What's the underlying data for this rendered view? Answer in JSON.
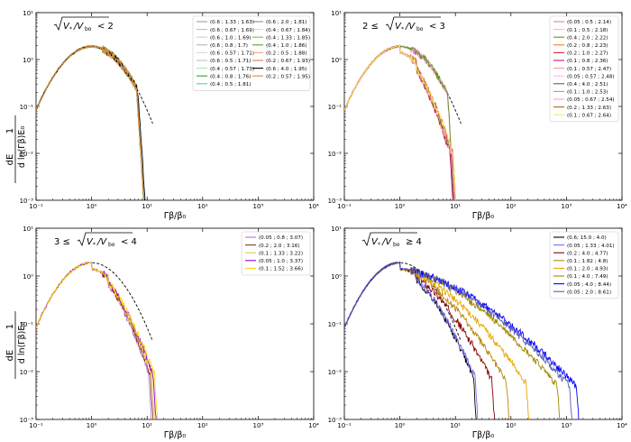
{
  "figure": {
    "ylabel_num": "dE",
    "ylabel_den": "d ln(Γβ)E₀",
    "ylabel_frac": "1",
    "xlabel": "Γβ/β₀"
  },
  "chart_data": [
    {
      "type": "line",
      "panel": "top-left",
      "title_prefix": "",
      "title_suffix": "<  2",
      "x_scale": "log",
      "y_scale": "log",
      "xlim": [
        0.1,
        10000
      ],
      "ylim": [
        0.001,
        10
      ],
      "x_ticks": [
        "10⁻¹",
        "10⁰",
        "10¹",
        "10²",
        "10³",
        "10⁴"
      ],
      "y_ticks": [
        "10⁻³",
        "10⁻²",
        "10⁻¹",
        "10⁰",
        "10¹"
      ],
      "xlabel": "Γβ/β₀",
      "legend_placement": "top-right",
      "legend_columns": 2,
      "series": [
        {
          "name": "(0.6 ; 1.33 ; 1.63)",
          "color": "#9e9e9e",
          "xmax": 8.5
        },
        {
          "name": "(0.6 ; 0.67 ; 1.69)",
          "color": "#bdbdbd",
          "xmax": 8.5
        },
        {
          "name": "(0.6 ; 1.0 ; 1.69)",
          "color": "#cfcfcf",
          "xmax": 8.5
        },
        {
          "name": "(0.6 ; 0.8 ; 1.7)",
          "color": "#b5b5b5",
          "xmax": 8.5
        },
        {
          "name": "(0.6 ; 0.57 ; 1.71)",
          "color": "#d9d9d9",
          "xmax": 8.5
        },
        {
          "name": "(0.6 ; 0.5 ; 1.71)",
          "color": "#c4c4c4",
          "xmax": 8.5
        },
        {
          "name": "(0.4 ; 0.57 ; 1.73)",
          "color": "#a8e6a1",
          "xmax": 8.5
        },
        {
          "name": "(0.4 ; 0.8 ; 1.76)",
          "color": "#2ca02c",
          "xmax": 8.5
        },
        {
          "name": "(0.4 ; 0.5 ; 1.81)",
          "color": "#3cd9a8",
          "xmax": 8.5
        },
        {
          "name": "(0.6 ; 2.0 ; 1.81)",
          "color": "#8c8c8c",
          "xmax": 8.5
        },
        {
          "name": "(0.4 ; 0.67 ; 1.84)",
          "color": "#c9e8a0",
          "xmax": 8.5
        },
        {
          "name": "(0.4 ; 1.33 ; 1.85)",
          "color": "#7fbf3f",
          "xmax": 8.5
        },
        {
          "name": "(0.4 ; 1.0 ; 1.86)",
          "color": "#5aa02c",
          "xmax": 8.5
        },
        {
          "name": "(0.2 ; 0.5 ; 1.88)",
          "color": "#f4a582",
          "xmax": 8.5
        },
        {
          "name": "(0.2 ; 0.67 ; 1.93)",
          "color": "#e07b54",
          "xmax": 8.5
        },
        {
          "name": "(0.6 ; 4.0 ; 1.95)",
          "color": "#000000",
          "xmax": 9.0
        },
        {
          "name": "(0.2 ; 0.57 ; 1.95)",
          "color": "#d98c3c",
          "xmax": 8.5
        }
      ]
    },
    {
      "type": "line",
      "panel": "top-right",
      "title_prefix": "2 ≤",
      "title_suffix": "<  3",
      "x_scale": "log",
      "y_scale": "log",
      "xlim": [
        0.1,
        10000
      ],
      "ylim": [
        0.001,
        10
      ],
      "x_ticks": [
        "10⁻¹",
        "10⁰",
        "10¹",
        "10²",
        "10³",
        "10⁴"
      ],
      "y_ticks": [
        "10⁻³",
        "10⁻²",
        "10⁻¹",
        "10⁰",
        "10¹"
      ],
      "xlabel": "Γβ/β₀",
      "legend_placement": "top-right",
      "legend_columns": 1,
      "series": [
        {
          "name": "(0.05 ; 0.5 ; 2.14)",
          "color": "#e377c2",
          "xmax": 9.5
        },
        {
          "name": "(0.1 ; 0.5 ; 2.18)",
          "color": "#f7b6d2",
          "xmax": 9.5
        },
        {
          "name": "(0.4 ; 2.0 ; 2.22)",
          "color": "#6b8e23",
          "xmax": 9.5
        },
        {
          "name": "(0.2 ; 0.8 ; 2.23)",
          "color": "#ff7f0e",
          "xmax": 10.5
        },
        {
          "name": "(0.2 ; 1.0 ; 2.27)",
          "color": "#d62728",
          "xmax": 10.5
        },
        {
          "name": "(0.1 ; 0.8 ; 2.36)",
          "color": "#c71585",
          "xmax": 10.5
        },
        {
          "name": "(0.1 ; 0.57 ; 2.47)",
          "color": "#ff9896",
          "xmax": 11
        },
        {
          "name": "(0.05 ; 0.57 ; 2.48)",
          "color": "#ffb6e6",
          "xmax": 11
        },
        {
          "name": "(0.4 ; 4.0 ; 2.51)",
          "color": "#556b2f",
          "xmax": 11
        },
        {
          "name": "(0.1 ; 1.0 ; 2.53)",
          "color": "#ff69b4",
          "xmax": 11.5
        },
        {
          "name": "(0.05 ; 0.67 ; 2.54)",
          "color": "#ffa0c8",
          "xmax": 11.5
        },
        {
          "name": "(0.2 ; 1.33 ; 2.63)",
          "color": "#b5651d",
          "xmax": 12
        },
        {
          "name": "(0.1 ; 0.67 ; 2.64)",
          "color": "#f5e663",
          "xmax": 12
        }
      ]
    },
    {
      "type": "line",
      "panel": "bottom-left",
      "title_prefix": "3 ≤",
      "title_suffix": "< 4",
      "x_scale": "log",
      "y_scale": "log",
      "xlim": [
        0.1,
        10000
      ],
      "ylim": [
        0.001,
        10
      ],
      "x_ticks": [
        "10⁻¹",
        "10⁰",
        "10¹",
        "10²",
        "10³",
        "10⁴"
      ],
      "y_ticks": [
        "10⁻³",
        "10⁻²",
        "10⁻¹",
        "10⁰",
        "10¹"
      ],
      "xlabel": "Γβ/β₀",
      "legend_placement": "top-right",
      "legend_columns": 1,
      "series": [
        {
          "name": "(0.05 ; 0.8 ; 3.07)",
          "color": "#b27ad6",
          "xmax": 14
        },
        {
          "name": "(0.2 ; 2.0 ; 3.16)",
          "color": "#8b3a1a",
          "xmax": 15
        },
        {
          "name": "(0.1 ; 1.33 ; 3.22)",
          "color": "#e8c547",
          "xmax": 16
        },
        {
          "name": "(0.05 ; 1.0 ; 3.37)",
          "color": "#9400d3",
          "xmax": 17
        },
        {
          "name": "(0.1 ; 1.52 ; 3.66)",
          "color": "#ffd700",
          "xmax": 18
        }
      ]
    },
    {
      "type": "line",
      "panel": "bottom-right",
      "title_prefix": "",
      "title_suffix": "≥  4",
      "x_scale": "log",
      "y_scale": "log",
      "xlim": [
        0.1,
        10000
      ],
      "ylim": [
        0.001,
        10
      ],
      "x_ticks": [
        "10⁻¹",
        "10⁰",
        "10¹",
        "10²",
        "10³",
        "10⁴"
      ],
      "y_ticks": [
        "10⁻³",
        "10⁻²",
        "10⁻¹",
        "10⁰",
        "10¹"
      ],
      "xlabel": "Γβ/β₀",
      "legend_placement": "top-right",
      "legend_columns": 1,
      "series": [
        {
          "name": "(0.6; 15.0 ; 4.0)",
          "color": "#000000",
          "xmax": 28
        },
        {
          "name": "(0.05 ; 1.33 ; 4.01)",
          "color": "#7b68ee",
          "xmax": 30
        },
        {
          "name": "(0.2 ; 4.0 ; 4.77)",
          "color": "#8b0000",
          "xmax": 60
        },
        {
          "name": "(0.1 ; 1.82 ; 4.8)",
          "color": "#b8860b",
          "xmax": 110
        },
        {
          "name": "(0.1 ; 2.0 ; 4.93)",
          "color": "#e6a800",
          "xmax": 250
        },
        {
          "name": "(0.1 ; 4.0 ; 7.49)",
          "color": "#a08a00",
          "xmax": 900
        },
        {
          "name": "(0.05 ; 4.0 ; 8.44)",
          "color": "#0000ff",
          "xmax": 2000
        },
        {
          "name": "(0.05 ; 2.0 ; 8.61)",
          "color": "#5a5ab4",
          "xmax": 1500
        }
      ]
    }
  ]
}
